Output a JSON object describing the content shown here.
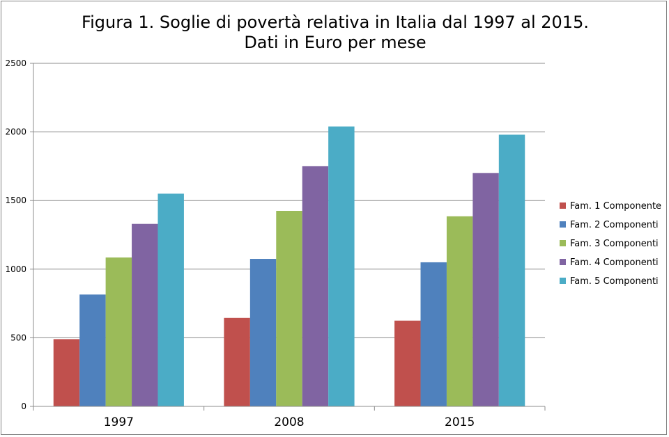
{
  "chart_data": {
    "type": "bar",
    "title": "Figura 1. Soglie di povertà relativa in Italia dal 1997 al 2015.",
    "subtitle": "Dati in Euro per mese",
    "xlabel": "",
    "ylabel": "",
    "categories": [
      "1997",
      "2008",
      "2015"
    ],
    "ylim": [
      0,
      2500
    ],
    "yticks": [
      0,
      500,
      1000,
      1500,
      2000,
      2500
    ],
    "grid": true,
    "legend_position": "right",
    "series": [
      {
        "name": "Fam. 1 Componente",
        "color": "#C0504D",
        "values": [
          490,
          645,
          625
        ]
      },
      {
        "name": "Fam. 2 Componenti",
        "color": "#4F81BD",
        "values": [
          815,
          1075,
          1050
        ]
      },
      {
        "name": "Fam. 3 Componenti",
        "color": "#9BBB59",
        "values": [
          1085,
          1425,
          1385
        ]
      },
      {
        "name": "Fam. 4 Componenti",
        "color": "#8064A2",
        "values": [
          1330,
          1750,
          1700
        ]
      },
      {
        "name": "Fam. 5 Componenti",
        "color": "#4BACC6",
        "values": [
          1550,
          2040,
          1980
        ]
      }
    ]
  }
}
